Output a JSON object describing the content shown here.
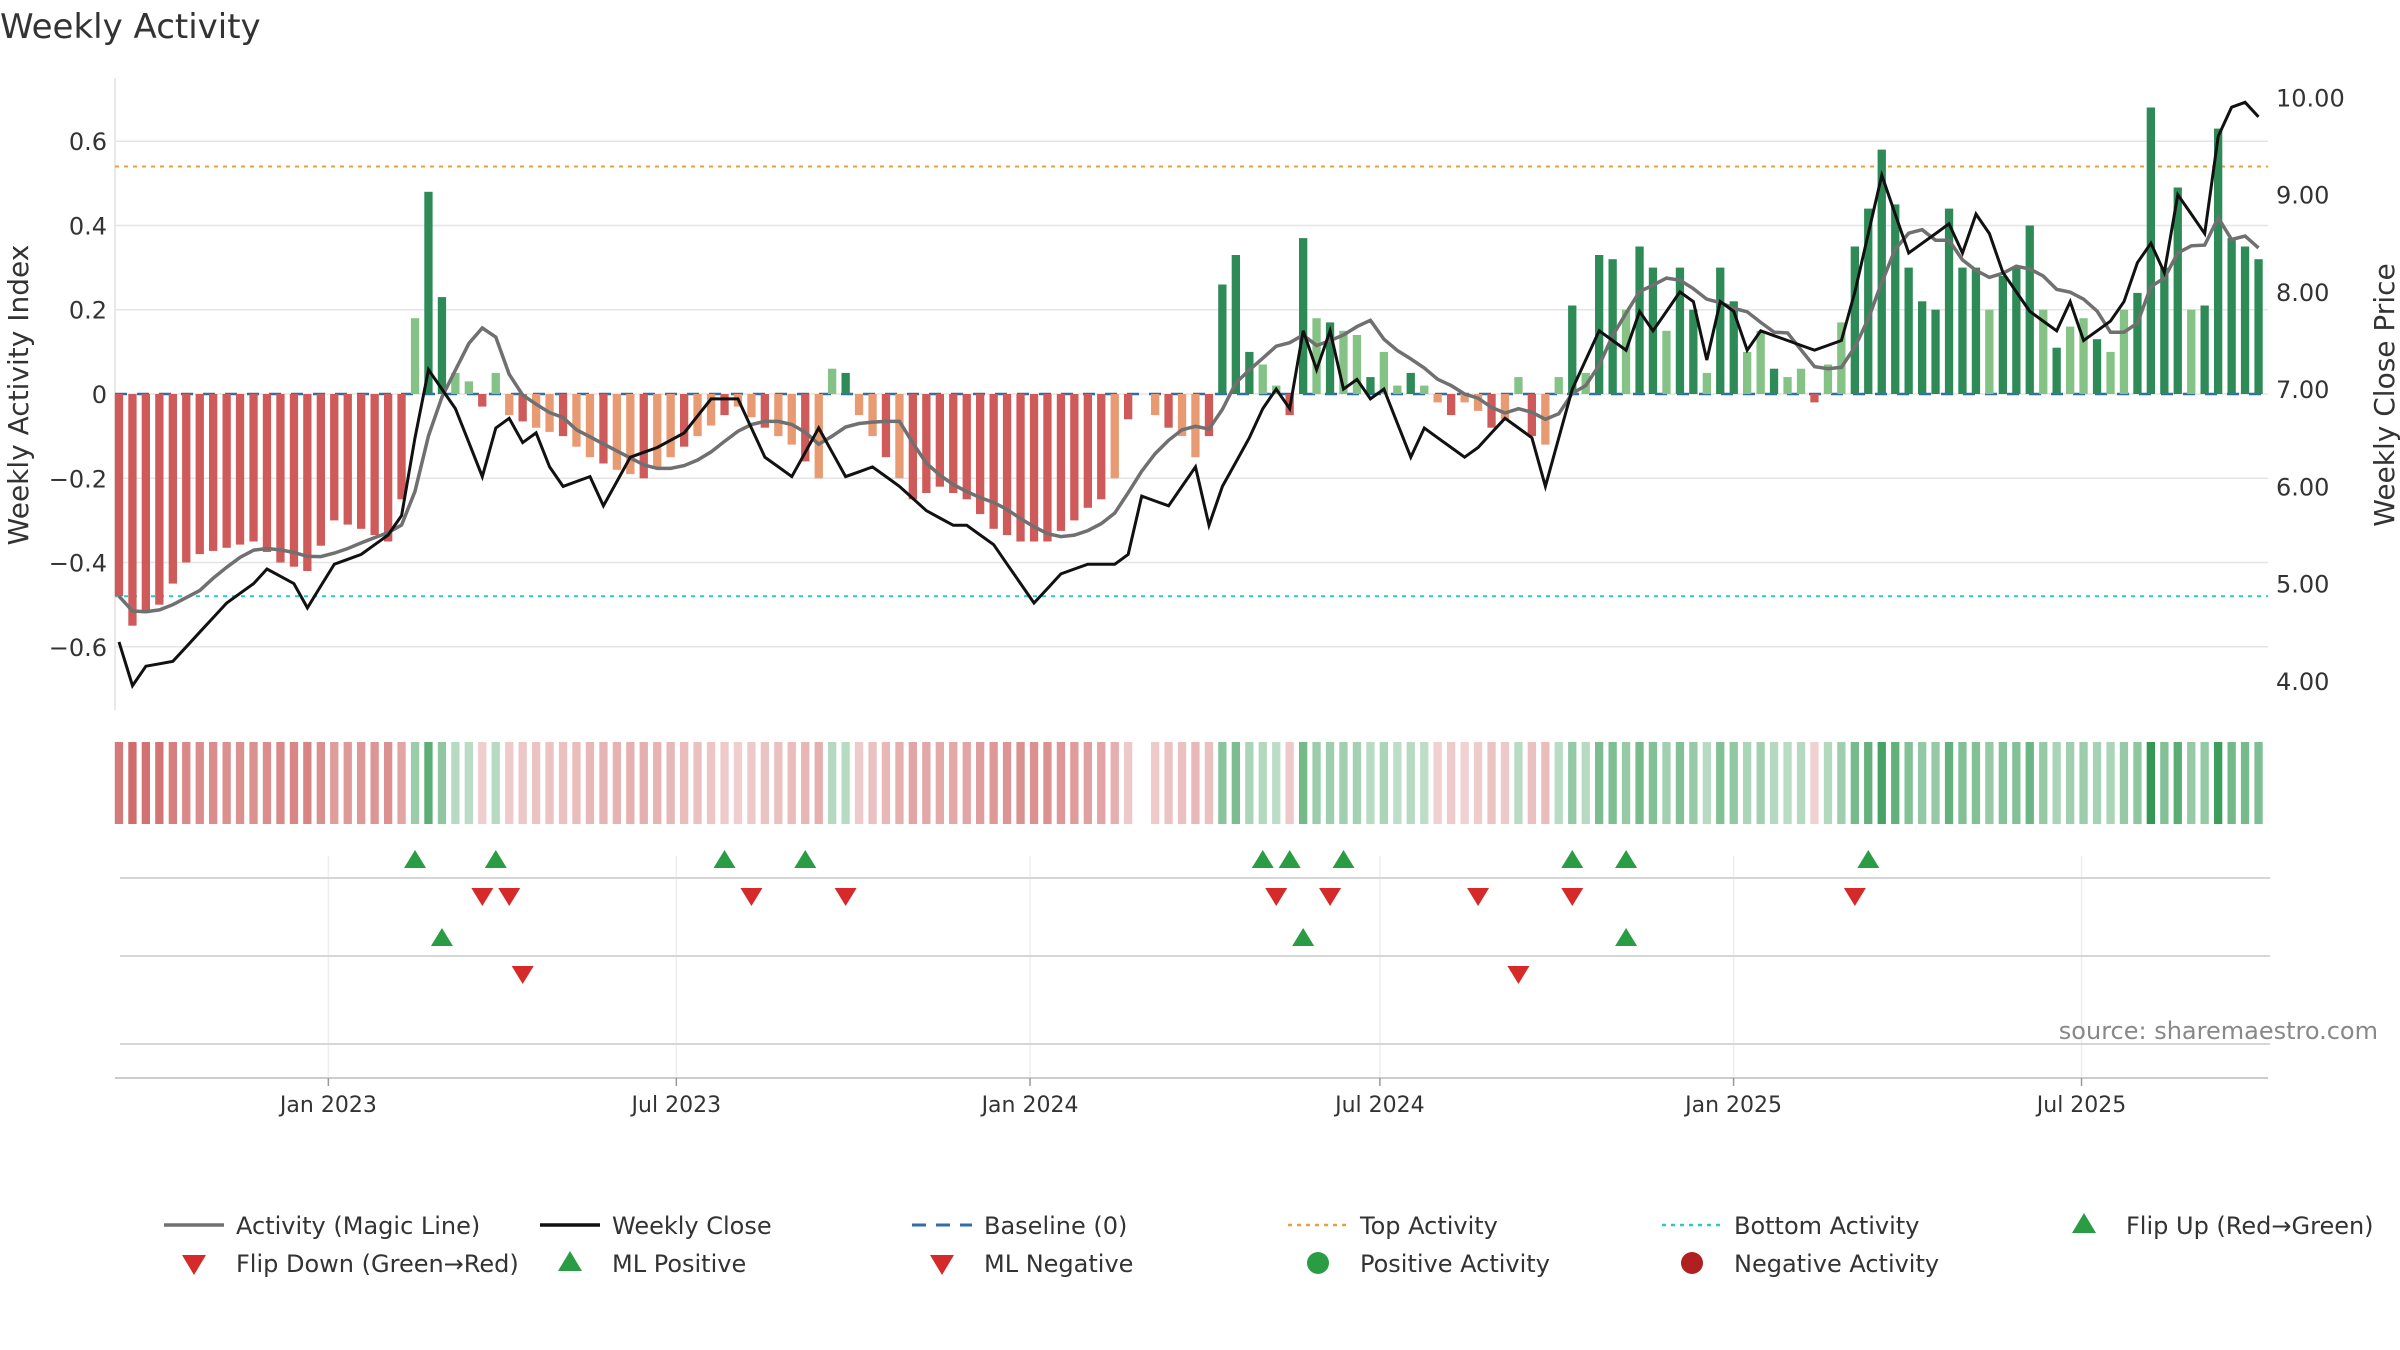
{
  "chart_data": {
    "type": "bar",
    "title": "Weekly Activity",
    "ylabel": "Weekly Activity Index",
    "y2label": "Weekly Close Price",
    "source": "source: sharemaestro.com",
    "ylim": [
      -0.75,
      0.75
    ],
    "y2lim": [
      3.7,
      10.2
    ],
    "xlim": [
      "2022-09-12",
      "2025-10-06"
    ],
    "y_ticks": [
      {
        "value": 0.6,
        "label": "0.6"
      },
      {
        "value": 0.4,
        "label": "0.4"
      },
      {
        "value": 0.2,
        "label": "0.2"
      },
      {
        "value": 0,
        "label": "0"
      },
      {
        "value": -0.2,
        "label": "−0.2"
      },
      {
        "value": -0.4,
        "label": "−0.4"
      },
      {
        "value": -0.6,
        "label": "−0.6"
      }
    ],
    "y2_ticks": [
      {
        "value": 10,
        "label": "10.00"
      },
      {
        "value": 9,
        "label": "9.00"
      },
      {
        "value": 8,
        "label": "8.00"
      },
      {
        "value": 7,
        "label": "7.00"
      },
      {
        "value": 6,
        "label": "6.00"
      },
      {
        "value": 5,
        "label": "5.00"
      },
      {
        "value": 4,
        "label": "4.00"
      }
    ],
    "x_ticks": [
      {
        "date": "2023-01-01",
        "label": "Jan 2023"
      },
      {
        "date": "2023-07-01",
        "label": "Jul 2023"
      },
      {
        "date": "2024-01-01",
        "label": "Jan 2024"
      },
      {
        "date": "2024-07-01",
        "label": "Jul 2024"
      },
      {
        "date": "2025-01-01",
        "label": "Jan 2025"
      },
      {
        "date": "2025-07-01",
        "label": "Jul 2025"
      }
    ],
    "top_activity": 0.54,
    "bottom_activity": -0.48,
    "baseline": 0,
    "start_date": "2022-09-12",
    "activity_anchors": [
      [
        0,
        -0.48
      ],
      [
        1,
        -0.55
      ],
      [
        2,
        -0.52
      ],
      [
        3,
        -0.5
      ],
      [
        4,
        -0.45
      ],
      [
        5,
        -0.4
      ],
      [
        6,
        -0.38
      ],
      [
        10,
        -0.35
      ],
      [
        12,
        -0.4
      ],
      [
        14,
        -0.42
      ],
      [
        16,
        -0.3
      ],
      [
        18,
        -0.32
      ],
      [
        20,
        -0.35
      ],
      [
        21,
        -0.25
      ],
      [
        22,
        0.18
      ],
      [
        23,
        0.48
      ],
      [
        24,
        0.23
      ],
      [
        25,
        0.05
      ],
      [
        26,
        0.03
      ],
      [
        27,
        -0.03
      ],
      [
        28,
        0.05
      ],
      [
        29,
        -0.05
      ],
      [
        31,
        -0.08
      ],
      [
        33,
        -0.1
      ],
      [
        35,
        -0.15
      ],
      [
        37,
        -0.18
      ],
      [
        39,
        -0.2
      ],
      [
        41,
        -0.15
      ],
      [
        43,
        -0.1
      ],
      [
        45,
        -0.05
      ],
      [
        46,
        -0.03
      ],
      [
        48,
        -0.08
      ],
      [
        50,
        -0.12
      ],
      [
        52,
        -0.2
      ],
      [
        53,
        0.06
      ],
      [
        54,
        0.05
      ],
      [
        55,
        -0.05
      ],
      [
        57,
        -0.15
      ],
      [
        59,
        -0.25
      ],
      [
        61,
        -0.22
      ],
      [
        63,
        -0.25
      ],
      [
        65,
        -0.32
      ],
      [
        67,
        -0.35
      ],
      [
        69,
        -0.35
      ],
      [
        71,
        -0.3
      ],
      [
        72,
        -0.27
      ],
      [
        73,
        -0.25
      ],
      [
        74,
        -0.2
      ],
      [
        75,
        -0.06
      ],
      [
        76,
        -0.02
      ],
      [
        77,
        -0.05
      ],
      [
        78,
        -0.08
      ],
      [
        79,
        -0.1
      ],
      [
        80,
        -0.15
      ],
      [
        81,
        -0.1
      ],
      [
        82,
        0.26
      ],
      [
        83,
        0.33
      ],
      [
        84,
        0.1
      ],
      [
        85,
        0.07
      ],
      [
        86,
        0.02
      ],
      [
        87,
        -0.05
      ],
      [
        88,
        0.37
      ],
      [
        89,
        0.18
      ],
      [
        90,
        0.17
      ],
      [
        91,
        0.15
      ],
      [
        92,
        0.14
      ],
      [
        93,
        0.04
      ],
      [
        94,
        0.1
      ],
      [
        95,
        0.02
      ],
      [
        96,
        0.05
      ],
      [
        97,
        0.02
      ],
      [
        98,
        -0.02
      ],
      [
        99,
        -0.05
      ],
      [
        100,
        -0.02
      ],
      [
        101,
        -0.04
      ],
      [
        102,
        -0.08
      ],
      [
        103,
        -0.06
      ],
      [
        104,
        0.04
      ],
      [
        105,
        -0.1
      ],
      [
        106,
        -0.12
      ],
      [
        107,
        0.04
      ],
      [
        108,
        0.21
      ],
      [
        109,
        0.05
      ],
      [
        110,
        0.33
      ],
      [
        111,
        0.32
      ],
      [
        112,
        0.2
      ],
      [
        113,
        0.35
      ],
      [
        114,
        0.3
      ],
      [
        115,
        0.15
      ],
      [
        116,
        0.3
      ],
      [
        117,
        0.2
      ],
      [
        118,
        0.05
      ],
      [
        119,
        0.3
      ],
      [
        120,
        0.22
      ],
      [
        121,
        0.1
      ],
      [
        122,
        0.15
      ],
      [
        123,
        0.06
      ],
      [
        124,
        0.04
      ],
      [
        125,
        0.06
      ],
      [
        126,
        -0.02
      ],
      [
        127,
        0.07
      ],
      [
        128,
        0.17
      ],
      [
        129,
        0.35
      ],
      [
        130,
        0.44
      ],
      [
        131,
        0.58
      ],
      [
        132,
        0.45
      ],
      [
        133,
        0.3
      ],
      [
        134,
        0.22
      ],
      [
        135,
        0.2
      ],
      [
        136,
        0.44
      ],
      [
        137,
        0.3
      ],
      [
        138,
        0.3
      ],
      [
        139,
        0.2
      ],
      [
        140,
        0.28
      ],
      [
        141,
        0.3
      ],
      [
        142,
        0.4
      ],
      [
        143,
        0.2
      ],
      [
        144,
        0.11
      ],
      [
        145,
        0.16
      ],
      [
        146,
        0.18
      ],
      [
        147,
        0.13
      ],
      [
        148,
        0.1
      ],
      [
        149,
        0.2
      ],
      [
        150,
        0.24
      ],
      [
        151,
        0.68
      ],
      [
        152,
        0.3
      ],
      [
        153,
        0.49
      ],
      [
        154,
        0.2
      ],
      [
        155,
        0.21
      ],
      [
        156,
        0.63
      ],
      [
        157,
        0.37
      ],
      [
        158,
        0.35
      ],
      [
        159,
        0.32
      ]
    ],
    "gap_weeks": [
      76
    ],
    "series": [
      {
        "name": "Activity (Magic Line)",
        "color": "#707070"
      },
      {
        "name": "Weekly Close",
        "color": "#111111"
      }
    ],
    "close_anchors": [
      [
        0,
        4.4
      ],
      [
        1,
        3.95
      ],
      [
        2,
        4.15
      ],
      [
        4,
        4.2
      ],
      [
        6,
        4.5
      ],
      [
        8,
        4.8
      ],
      [
        10,
        5.0
      ],
      [
        11,
        5.15
      ],
      [
        13,
        5.0
      ],
      [
        14,
        4.75
      ],
      [
        16,
        5.2
      ],
      [
        18,
        5.3
      ],
      [
        20,
        5.5
      ],
      [
        21,
        5.7
      ],
      [
        22,
        6.5
      ],
      [
        23,
        7.2
      ],
      [
        24,
        7.0
      ],
      [
        25,
        6.8
      ],
      [
        27,
        6.1
      ],
      [
        28,
        6.6
      ],
      [
        29,
        6.7
      ],
      [
        30,
        6.45
      ],
      [
        31,
        6.55
      ],
      [
        32,
        6.2
      ],
      [
        33,
        6.0
      ],
      [
        35,
        6.1
      ],
      [
        36,
        5.8
      ],
      [
        38,
        6.3
      ],
      [
        40,
        6.4
      ],
      [
        42,
        6.55
      ],
      [
        44,
        6.9
      ],
      [
        46,
        6.9
      ],
      [
        47,
        6.6
      ],
      [
        48,
        6.3
      ],
      [
        50,
        6.1
      ],
      [
        52,
        6.6
      ],
      [
        54,
        6.1
      ],
      [
        56,
        6.2
      ],
      [
        58,
        6.0
      ],
      [
        60,
        5.75
      ],
      [
        62,
        5.6
      ],
      [
        63,
        5.6
      ],
      [
        65,
        5.4
      ],
      [
        67,
        5.0
      ],
      [
        68,
        4.8
      ],
      [
        70,
        5.1
      ],
      [
        72,
        5.2
      ],
      [
        74,
        5.2
      ],
      [
        75,
        5.3
      ],
      [
        76,
        5.9
      ],
      [
        78,
        5.8
      ],
      [
        80,
        6.2
      ],
      [
        81,
        5.6
      ],
      [
        82,
        6.0
      ],
      [
        84,
        6.5
      ],
      [
        85,
        6.8
      ],
      [
        86,
        7.0
      ],
      [
        87,
        6.8
      ],
      [
        88,
        7.6
      ],
      [
        89,
        7.2
      ],
      [
        90,
        7.6
      ],
      [
        91,
        7.0
      ],
      [
        92,
        7.1
      ],
      [
        93,
        6.9
      ],
      [
        94,
        7.0
      ],
      [
        96,
        6.3
      ],
      [
        97,
        6.6
      ],
      [
        98,
        6.5
      ],
      [
        100,
        6.3
      ],
      [
        101,
        6.4
      ],
      [
        103,
        6.7
      ],
      [
        105,
        6.5
      ],
      [
        106,
        6.0
      ],
      [
        108,
        7.0
      ],
      [
        110,
        7.6
      ],
      [
        112,
        7.4
      ],
      [
        113,
        7.8
      ],
      [
        114,
        7.6
      ],
      [
        116,
        8.0
      ],
      [
        117,
        7.9
      ],
      [
        118,
        7.3
      ],
      [
        119,
        7.9
      ],
      [
        120,
        7.8
      ],
      [
        121,
        7.4
      ],
      [
        122,
        7.6
      ],
      [
        124,
        7.5
      ],
      [
        126,
        7.4
      ],
      [
        128,
        7.5
      ],
      [
        129,
        8.0
      ],
      [
        131,
        9.2
      ],
      [
        132,
        8.8
      ],
      [
        133,
        8.4
      ],
      [
        134,
        8.5
      ],
      [
        136,
        8.7
      ],
      [
        137,
        8.4
      ],
      [
        138,
        8.8
      ],
      [
        139,
        8.6
      ],
      [
        140,
        8.2
      ],
      [
        142,
        7.8
      ],
      [
        144,
        7.6
      ],
      [
        145,
        7.9
      ],
      [
        146,
        7.5
      ],
      [
        147,
        7.6
      ],
      [
        148,
        7.7
      ],
      [
        149,
        7.9
      ],
      [
        150,
        8.3
      ],
      [
        151,
        8.5
      ],
      [
        152,
        8.2
      ],
      [
        153,
        9.0
      ],
      [
        154,
        8.8
      ],
      [
        155,
        8.6
      ],
      [
        156,
        9.6
      ],
      [
        157,
        9.9
      ],
      [
        158,
        9.95
      ],
      [
        159,
        9.8
      ]
    ],
    "flip_up_weeks": [
      22,
      28,
      45,
      51,
      85,
      87,
      91,
      108,
      112,
      130
    ],
    "flip_down_weeks": [
      27,
      29,
      47,
      54,
      86,
      90,
      101,
      108,
      129
    ],
    "ml_positive_weeks": [
      24,
      88,
      112
    ],
    "ml_negative_weeks": [
      30,
      104
    ],
    "legend": [
      {
        "label": "Activity (Magic Line)",
        "symbol": "line-solid",
        "color": "#707070"
      },
      {
        "label": "Weekly Close",
        "symbol": "line-solid",
        "color": "#111111"
      },
      {
        "label": "Baseline (0)",
        "symbol": "line-dash",
        "color": "#2f6ea8"
      },
      {
        "label": "Top Activity",
        "symbol": "line-dot",
        "color": "#e5a040"
      },
      {
        "label": "Bottom Activity",
        "symbol": "line-dot",
        "color": "#2cc7c7"
      },
      {
        "label": "Flip Up (Red→Green)",
        "symbol": "triangle-up",
        "color": "#2a9d44"
      },
      {
        "label": "Flip Down (Green→Red)",
        "symbol": "triangle-down",
        "color": "#d62a2a"
      },
      {
        "label": "ML Positive",
        "symbol": "triangle-up",
        "color": "#2a9d44"
      },
      {
        "label": "ML Negative",
        "symbol": "triangle-down",
        "color": "#d62a2a"
      },
      {
        "label": "Positive Activity",
        "symbol": "circle",
        "color": "#2a9d44"
      },
      {
        "label": "Negative Activity",
        "symbol": "circle",
        "color": "#b02020"
      }
    ],
    "colors": {
      "pos_strong": "#2e8b57",
      "pos_light": "#85c286",
      "neg_strong": "#cf5a5a",
      "neg_light": "#e89a72",
      "grid": "#e5e5e5",
      "axis_text": "#333333"
    }
  }
}
